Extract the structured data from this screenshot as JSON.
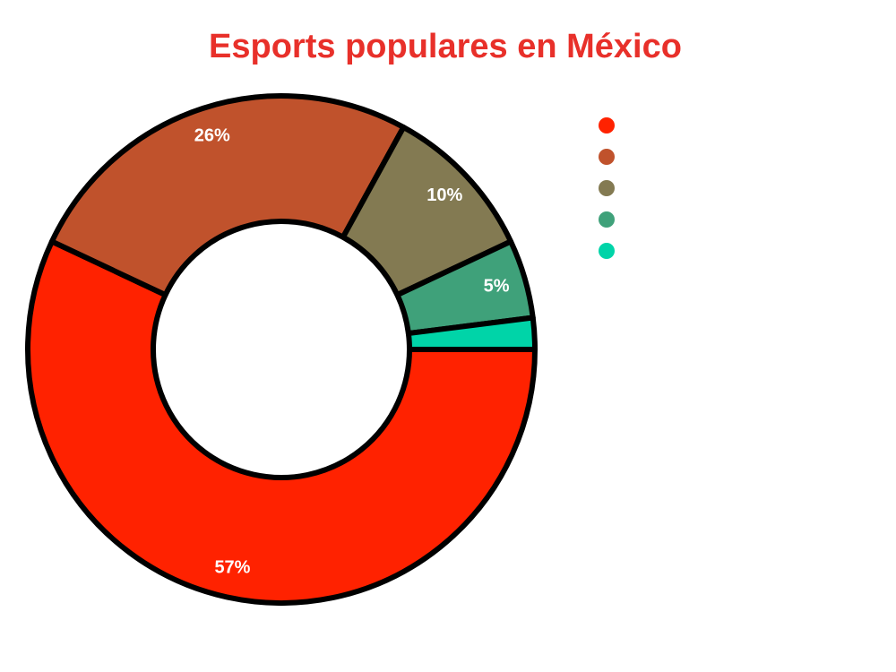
{
  "chart_data": {
    "type": "donut",
    "title": "Esports populares en México",
    "values": [
      57,
      26,
      10,
      5,
      2
    ],
    "value_labels": [
      "57%",
      "26%",
      "10%",
      "5%",
      null
    ],
    "colors": [
      "#ff2200",
      "#c0522c",
      "#837a52",
      "#3fa17a",
      "#00d4a8"
    ]
  }
}
